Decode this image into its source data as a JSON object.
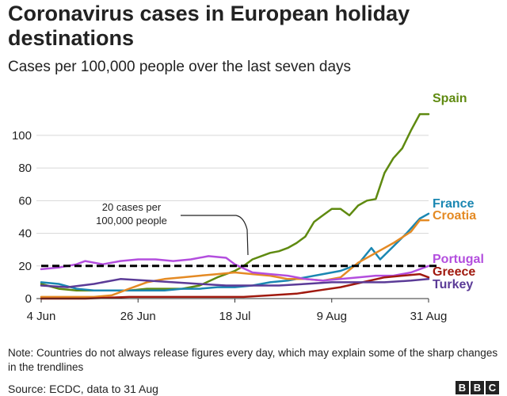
{
  "title": "Coronavirus cases in European holiday destinations",
  "subtitle": "Cases per 100,000 people over the last seven days",
  "note": "Note: Countries do not always release figures every day, which may explain some of the sharp changes in the trendlines",
  "source": "Source: ECDC, data to 31 Aug",
  "logo": [
    "B",
    "B",
    "C"
  ],
  "chart_data": {
    "type": "line",
    "x_start": "2020-06-04",
    "x_end": "2020-08-31",
    "xticks": [
      {
        "date": "2020-06-04",
        "label": "4 Jun"
      },
      {
        "date": "2020-06-26",
        "label": "26 Jun"
      },
      {
        "date": "2020-07-18",
        "label": "18 Jul"
      },
      {
        "date": "2020-08-09",
        "label": "9 Aug"
      },
      {
        "date": "2020-08-31",
        "label": "31 Aug"
      }
    ],
    "ylim": [
      0,
      115
    ],
    "yticks": [
      0,
      20,
      40,
      60,
      80,
      100
    ],
    "reference_line": {
      "value": 20,
      "label_lines": [
        "20 cases per",
        "100,000 people"
      ],
      "label_date": "2020-07-18"
    },
    "series": [
      {
        "name": "Spain",
        "color": "#5f8a10",
        "points": [
          [
            "2020-06-04",
            9
          ],
          [
            "2020-06-08",
            6
          ],
          [
            "2020-06-12",
            5
          ],
          [
            "2020-06-16",
            5
          ],
          [
            "2020-06-20",
            5
          ],
          [
            "2020-06-24",
            5
          ],
          [
            "2020-06-28",
            6
          ],
          [
            "2020-07-02",
            6
          ],
          [
            "2020-07-06",
            6
          ],
          [
            "2020-07-10",
            8
          ],
          [
            "2020-07-14",
            13
          ],
          [
            "2020-07-18",
            17
          ],
          [
            "2020-07-20",
            20
          ],
          [
            "2020-07-22",
            24
          ],
          [
            "2020-07-24",
            26
          ],
          [
            "2020-07-26",
            28
          ],
          [
            "2020-07-28",
            29
          ],
          [
            "2020-07-30",
            31
          ],
          [
            "2020-08-01",
            34
          ],
          [
            "2020-08-03",
            38
          ],
          [
            "2020-08-05",
            47
          ],
          [
            "2020-08-07",
            51
          ],
          [
            "2020-08-09",
            55
          ],
          [
            "2020-08-11",
            55
          ],
          [
            "2020-08-13",
            51
          ],
          [
            "2020-08-15",
            57
          ],
          [
            "2020-08-17",
            60
          ],
          [
            "2020-08-19",
            61
          ],
          [
            "2020-08-21",
            77
          ],
          [
            "2020-08-23",
            86
          ],
          [
            "2020-08-25",
            92
          ],
          [
            "2020-08-27",
            103
          ],
          [
            "2020-08-29",
            113
          ],
          [
            "2020-08-31",
            113
          ]
        ]
      },
      {
        "name": "France",
        "color": "#1a87b2",
        "points": [
          [
            "2020-06-04",
            10
          ],
          [
            "2020-06-08",
            9
          ],
          [
            "2020-06-12",
            6
          ],
          [
            "2020-06-16",
            5
          ],
          [
            "2020-06-20",
            5
          ],
          [
            "2020-06-24",
            5
          ],
          [
            "2020-06-28",
            5
          ],
          [
            "2020-07-02",
            5
          ],
          [
            "2020-07-06",
            6
          ],
          [
            "2020-07-10",
            6
          ],
          [
            "2020-07-14",
            7
          ],
          [
            "2020-07-18",
            7
          ],
          [
            "2020-07-22",
            8
          ],
          [
            "2020-07-26",
            10
          ],
          [
            "2020-07-30",
            11
          ],
          [
            "2020-08-03",
            13
          ],
          [
            "2020-08-07",
            15
          ],
          [
            "2020-08-11",
            17
          ],
          [
            "2020-08-15",
            21
          ],
          [
            "2020-08-18",
            31
          ],
          [
            "2020-08-20",
            24
          ],
          [
            "2020-08-23",
            32
          ],
          [
            "2020-08-26",
            40
          ],
          [
            "2020-08-29",
            49
          ],
          [
            "2020-08-31",
            52
          ]
        ]
      },
      {
        "name": "Croatia",
        "color": "#e48a24",
        "points": [
          [
            "2020-06-04",
            1
          ],
          [
            "2020-06-10",
            1
          ],
          [
            "2020-06-16",
            1
          ],
          [
            "2020-06-20",
            2
          ],
          [
            "2020-06-24",
            6
          ],
          [
            "2020-06-28",
            10
          ],
          [
            "2020-07-02",
            12
          ],
          [
            "2020-07-06",
            13
          ],
          [
            "2020-07-10",
            14
          ],
          [
            "2020-07-14",
            15
          ],
          [
            "2020-07-18",
            16
          ],
          [
            "2020-07-22",
            15
          ],
          [
            "2020-07-26",
            14
          ],
          [
            "2020-07-30",
            12
          ],
          [
            "2020-08-03",
            12
          ],
          [
            "2020-08-07",
            11
          ],
          [
            "2020-08-11",
            13
          ],
          [
            "2020-08-15",
            22
          ],
          [
            "2020-08-19",
            28
          ],
          [
            "2020-08-23",
            34
          ],
          [
            "2020-08-27",
            41
          ],
          [
            "2020-08-29",
            48
          ],
          [
            "2020-08-31",
            48
          ]
        ]
      },
      {
        "name": "Portugal",
        "color": "#b34ede",
        "points": [
          [
            "2020-06-04",
            18
          ],
          [
            "2020-06-08",
            19
          ],
          [
            "2020-06-12",
            21
          ],
          [
            "2020-06-14",
            23
          ],
          [
            "2020-06-18",
            21
          ],
          [
            "2020-06-22",
            23
          ],
          [
            "2020-06-26",
            24
          ],
          [
            "2020-06-30",
            24
          ],
          [
            "2020-07-04",
            23
          ],
          [
            "2020-07-08",
            24
          ],
          [
            "2020-07-12",
            26
          ],
          [
            "2020-07-16",
            25
          ],
          [
            "2020-07-18",
            21
          ],
          [
            "2020-07-22",
            16
          ],
          [
            "2020-07-26",
            15
          ],
          [
            "2020-07-30",
            14
          ],
          [
            "2020-08-03",
            12
          ],
          [
            "2020-08-07",
            11
          ],
          [
            "2020-08-11",
            12
          ],
          [
            "2020-08-15",
            13
          ],
          [
            "2020-08-19",
            14
          ],
          [
            "2020-08-23",
            14
          ],
          [
            "2020-08-27",
            16
          ],
          [
            "2020-08-31",
            20
          ]
        ]
      },
      {
        "name": "Greece",
        "color": "#a0190e",
        "points": [
          [
            "2020-06-04",
            0
          ],
          [
            "2020-06-14",
            0
          ],
          [
            "2020-06-24",
            1
          ],
          [
            "2020-07-04",
            1
          ],
          [
            "2020-07-14",
            1
          ],
          [
            "2020-07-20",
            1
          ],
          [
            "2020-07-26",
            2
          ],
          [
            "2020-08-01",
            3
          ],
          [
            "2020-08-06",
            5
          ],
          [
            "2020-08-11",
            7
          ],
          [
            "2020-08-16",
            10
          ],
          [
            "2020-08-21",
            13
          ],
          [
            "2020-08-25",
            14
          ],
          [
            "2020-08-29",
            15
          ],
          [
            "2020-08-31",
            13
          ]
        ]
      },
      {
        "name": "Turkey",
        "color": "#5b3b97",
        "points": [
          [
            "2020-06-04",
            8
          ],
          [
            "2020-06-10",
            7
          ],
          [
            "2020-06-16",
            9
          ],
          [
            "2020-06-22",
            12
          ],
          [
            "2020-06-28",
            11
          ],
          [
            "2020-07-04",
            10
          ],
          [
            "2020-07-10",
            9
          ],
          [
            "2020-07-16",
            8
          ],
          [
            "2020-07-22",
            8
          ],
          [
            "2020-07-28",
            8
          ],
          [
            "2020-08-03",
            9
          ],
          [
            "2020-08-09",
            10
          ],
          [
            "2020-08-15",
            10
          ],
          [
            "2020-08-21",
            10
          ],
          [
            "2020-08-27",
            11
          ],
          [
            "2020-08-31",
            12
          ]
        ]
      }
    ]
  }
}
